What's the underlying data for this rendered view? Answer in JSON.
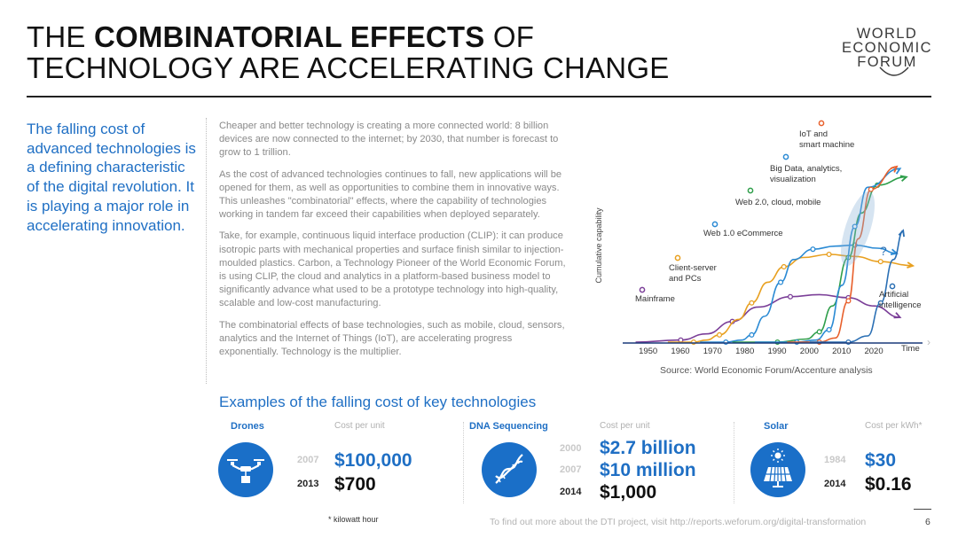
{
  "title": {
    "pre": "THE ",
    "bold": "COMBINATORIAL EFFECTS",
    "post": " OF",
    "line2": "TECHNOLOGY ARE ACCELERATING CHANGE"
  },
  "logo": {
    "line1": "WORLD",
    "line2": "ECONOMIC",
    "line3": "FORUM"
  },
  "lead": "The falling cost of advanced technologies is a defining characteristic of the digital revolution. It is playing a major role in accelerating innovation.",
  "body": {
    "p1": "Cheaper and better technology is creating a more connected world: 8 billion devices are now connected to the internet; by 2030, that number is forecast to grow to 1 trillion.",
    "p2": "As the cost of advanced technologies continues to fall, new applications will be opened for them, as well as opportunities to combine them in innovative ways. This unleashes \"combinatorial\" effects, where the capability of technologies working in tandem far exceed their capabilities when deployed separately.",
    "p3": "Take, for example, continuous liquid interface production (CLIP): it can produce isotropic parts with mechanical properties and surface finish similar to injection-moulded plastics. Carbon, a Technology Pioneer of the World Economic Forum, is using CLIP, the cloud and analytics in a platform-based business model to significantly advance what used to be a prototype technology into high-quality, scalable and low-cost manufacturing.",
    "p4": "The combinatorial effects of base technologies, such as mobile, cloud, sensors, analytics and the Internet of Things (IoT), are accelerating progress exponentially. Technology is the multiplier."
  },
  "chart": {
    "ylabel": "Cumulative capability",
    "xlabel": "Time",
    "source": "Source: World Economic Forum/Accenture analysis",
    "question_mark": "?",
    "labels": {
      "mainframe": "Mainframe",
      "client": [
        "Client-server",
        "and PCs"
      ],
      "web1": "Web 1.0 eCommerce",
      "web2": "Web 2.0, cloud, mobile",
      "bigdata": [
        "Big Data, analytics,",
        "visualization"
      ],
      "iot": [
        "IoT and",
        "smart machine"
      ],
      "ai": [
        "Artificial",
        "intelligence"
      ]
    }
  },
  "chart_data": {
    "type": "line",
    "x_ticks": [
      "1950",
      "1960",
      "1970",
      "1980",
      "1990",
      "2000",
      "2010",
      "2020"
    ],
    "xlim": [
      1942,
      2035
    ],
    "series": [
      {
        "name": "Mainframe",
        "color": "#7b3f98",
        "points": [
          [
            1946,
            0
          ],
          [
            1960,
            2
          ],
          [
            1968,
            8
          ],
          [
            1976,
            20
          ],
          [
            1984,
            34
          ],
          [
            1994,
            44
          ],
          [
            2003,
            46
          ],
          [
            2012,
            43
          ],
          [
            2020,
            35
          ],
          [
            2028,
            24
          ]
        ]
      },
      {
        "name": "Client-server and PCs",
        "color": "#e8a020",
        "points": [
          [
            1956,
            0
          ],
          [
            1964,
            0
          ],
          [
            1968,
            2
          ],
          [
            1972,
            7
          ],
          [
            1978,
            22
          ],
          [
            1982,
            38
          ],
          [
            1987,
            58
          ],
          [
            1992,
            73
          ],
          [
            1998,
            82
          ],
          [
            2006,
            85
          ],
          [
            2014,
            83
          ],
          [
            2022,
            78
          ],
          [
            2032,
            74
          ]
        ]
      },
      {
        "name": "Web 1.0 eCommerce",
        "color": "#2a8ad4",
        "points": [
          [
            1966,
            0
          ],
          [
            1974,
            0
          ],
          [
            1979,
            2
          ],
          [
            1982,
            7
          ],
          [
            1986,
            25
          ],
          [
            1991,
            58
          ],
          [
            1995,
            80
          ],
          [
            2001,
            90
          ],
          [
            2008,
            93
          ],
          [
            2014,
            94
          ],
          [
            2021,
            91
          ],
          [
            2027,
            86
          ]
        ]
      },
      {
        "name": "Web 2.0, cloud, mobile",
        "color": "#2e9e4a",
        "points": [
          [
            1976,
            0
          ],
          [
            1990,
            0
          ],
          [
            1999,
            3
          ],
          [
            2003,
            10
          ],
          [
            2007,
            35
          ],
          [
            2012,
            82
          ],
          [
            2016,
            125
          ],
          [
            2021,
            152
          ],
          [
            2030,
            160
          ]
        ]
      },
      {
        "name": "Big Data, analytics, visualization",
        "color": "#2a8ad4",
        "points": [
          [
            1983,
            0
          ],
          [
            1996,
            0
          ],
          [
            2002,
            2
          ],
          [
            2006,
            12
          ],
          [
            2010,
            55
          ],
          [
            2014,
            112
          ],
          [
            2018,
            150
          ],
          [
            2028,
            168
          ]
        ]
      },
      {
        "name": "IoT and smart machine",
        "color": "#e8602c",
        "points": [
          [
            1993,
            0
          ],
          [
            2003,
            0
          ],
          [
            2008,
            4
          ],
          [
            2012,
            40
          ],
          [
            2015,
            100
          ],
          [
            2019,
            148
          ],
          [
            2027,
            170
          ]
        ]
      },
      {
        "name": "Artificial intelligence",
        "color": "#2a6fb4",
        "points": [
          [
            2000,
            0
          ],
          [
            2012,
            0
          ],
          [
            2018,
            6
          ],
          [
            2022,
            38
          ],
          [
            2026,
            80
          ],
          [
            2029,
            108
          ]
        ]
      }
    ]
  },
  "examples": {
    "heading": "Examples of the falling cost of key technologies",
    "drones": {
      "title": "Drones",
      "cost_label": "Cost per unit",
      "y1": "2007",
      "v1": "$100,000",
      "y2": "2013",
      "v2": "$700"
    },
    "dna": {
      "title": "DNA Sequencing",
      "cost_label": "Cost per unit",
      "y1": "2000",
      "v1": "$2.7 billion",
      "y2": "2007",
      "v2": "$10 million",
      "y3": "2014",
      "v3": "$1,000"
    },
    "solar": {
      "title": "Solar",
      "cost_label": "Cost per kWh*",
      "y1": "1984",
      "v1": "$30",
      "y2": "2014",
      "v2": "$0.16"
    }
  },
  "footnote": "* kilowatt hour",
  "footer": "To find out more about the DTI project, visit http://reports.weforum.org/digital-transformation",
  "page": "6",
  "colors": {
    "accent": "#1f6fc4",
    "icon_bg": "#1a6fc8"
  }
}
